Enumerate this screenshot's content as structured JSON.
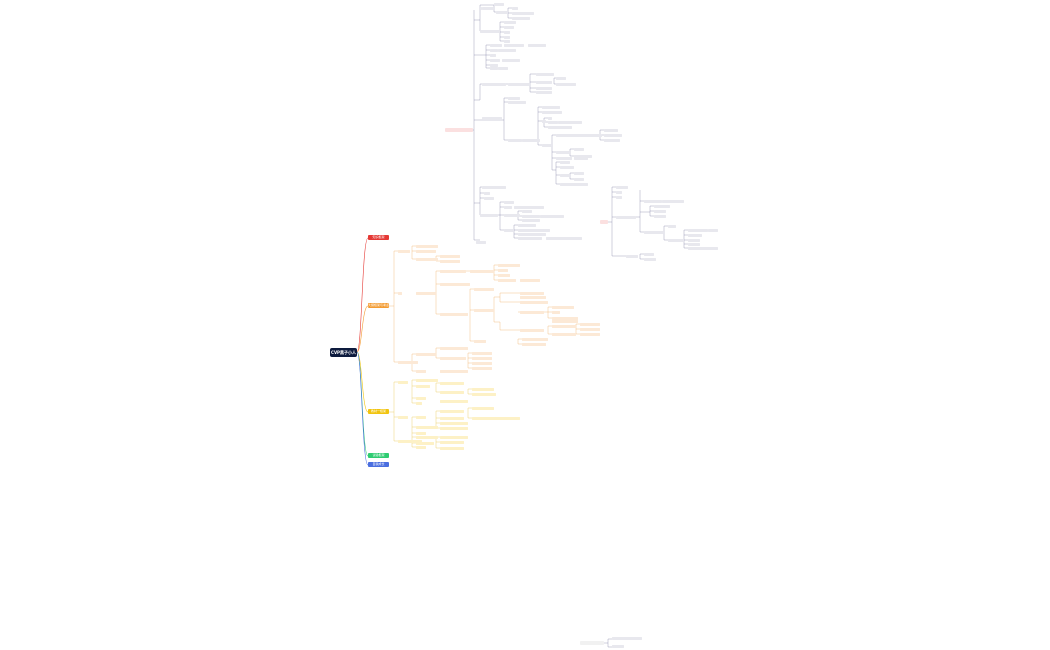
{
  "mindmap": {
    "root_label": "CVP黑子小人",
    "branches": [
      {
        "label": "知识框架",
        "color": "#e53935"
      },
      {
        "label": "大纲框架与考点",
        "color": "#f39c33"
      },
      {
        "label": "教材一框架",
        "color": "#f1c40f"
      },
      {
        "label": "试验框架",
        "color": "#2ecc71"
      },
      {
        "label": "自我成长",
        "color": "#4a6ee0"
      }
    ]
  }
}
